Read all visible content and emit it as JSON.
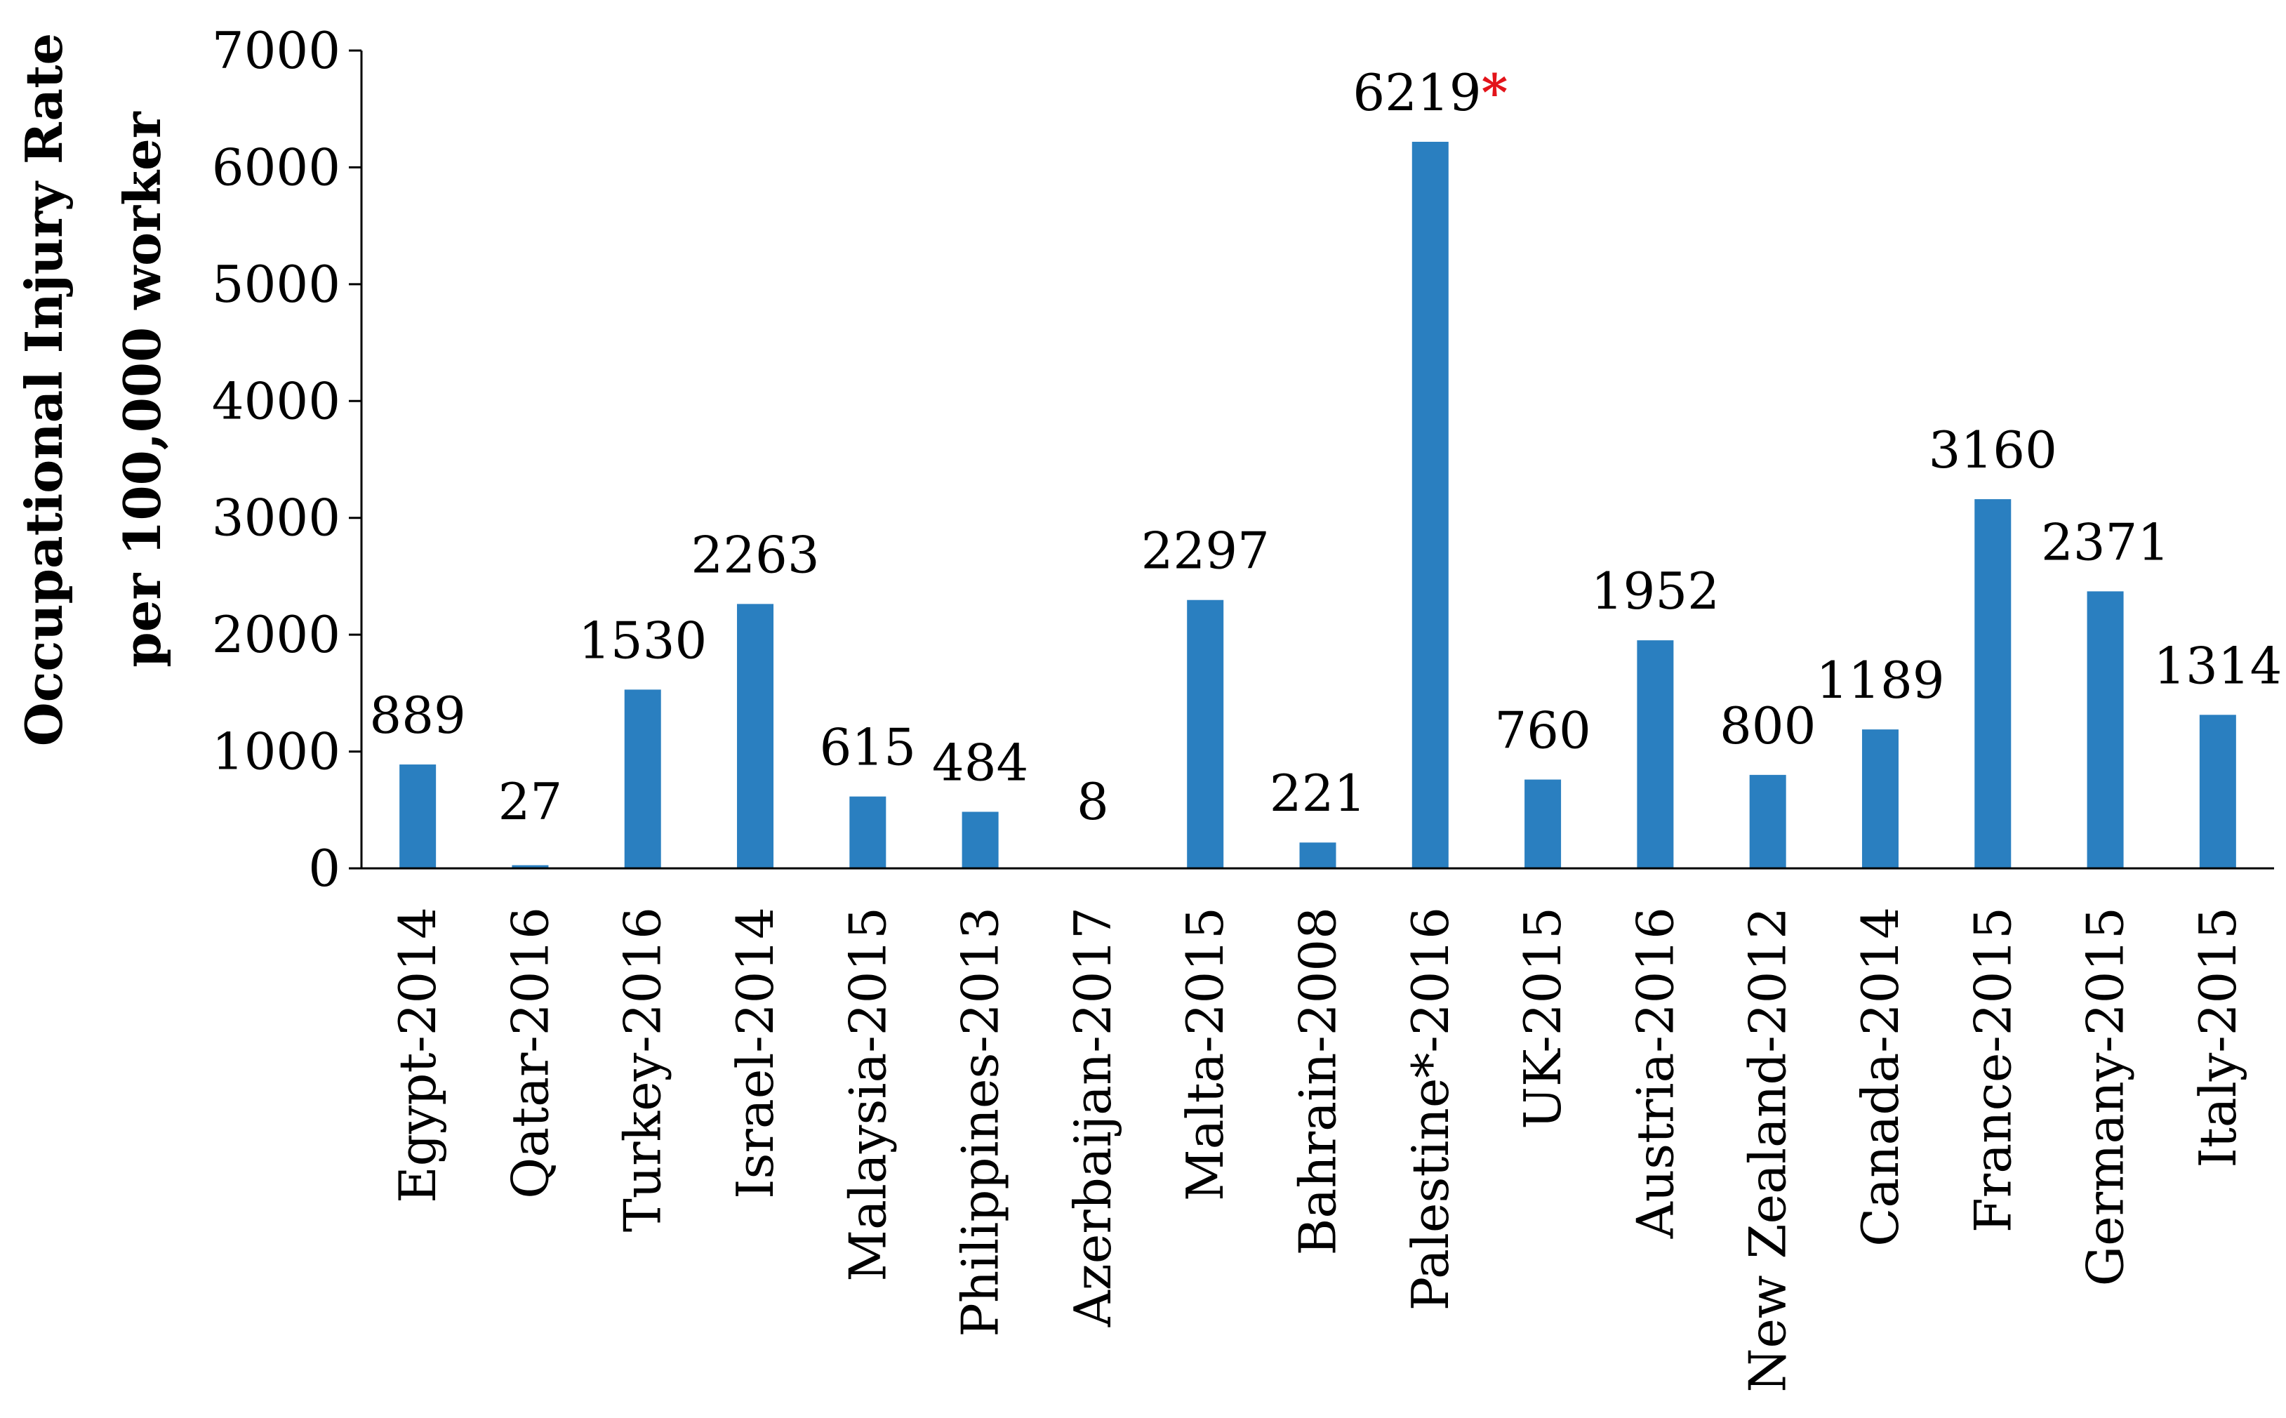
{
  "chart_data": {
    "type": "bar",
    "title": "",
    "xlabel": "",
    "ylabel": [
      "Occupational Injury Rate",
      "per 100,000 worker"
    ],
    "ylim": [
      0,
      7000
    ],
    "yticks": [
      0,
      1000,
      2000,
      3000,
      4000,
      5000,
      6000,
      7000
    ],
    "grid": false,
    "legend": "none",
    "bar_color": "#2A7FC0",
    "asterisk_color": "#E3141A",
    "categories": [
      "Egypt-2014",
      "Qatar-2016",
      "Turkey-2016",
      "Israel-2014",
      "Malaysia-2015",
      "Philippines-2013",
      "Azerbaijan-2017",
      "Malta-2015",
      "Bahrain-2008",
      "Palestine*-2016",
      "UK-2015",
      "Austria-2016",
      "New Zealand-2012",
      "Canada-2014",
      "France-2015",
      "Germany-2015",
      "Italy-2015"
    ],
    "values": [
      889,
      27,
      1530,
      2263,
      615,
      484,
      8,
      2297,
      221,
      6219,
      760,
      1952,
      800,
      1189,
      3160,
      2371,
      1314
    ],
    "data_labels": [
      "889",
      "27",
      "1530",
      "2263",
      "615",
      "484",
      "8",
      "2297",
      "221",
      "6219",
      "760",
      "1952",
      "800",
      "1189",
      "3160",
      "2371",
      "1314"
    ],
    "annotations": [
      {
        "category": "Palestine*-2016",
        "text": "*",
        "color": "#E3141A"
      }
    ]
  }
}
